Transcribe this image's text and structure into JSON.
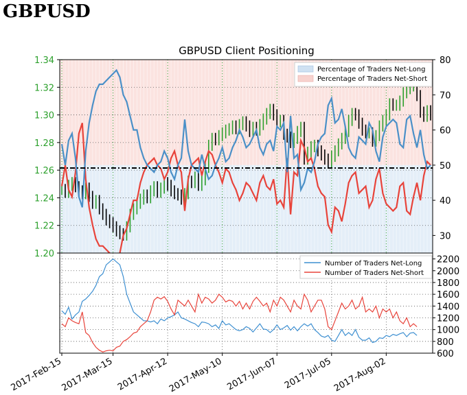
{
  "page": {
    "title": "GBPUSD"
  },
  "chart_data": [
    {
      "type": "line",
      "title": "GBPUSD Client Positioning",
      "ylim_left": [
        1.2,
        1.34
      ],
      "ylim_right": [
        25,
        80
      ],
      "left_ticks": [
        "1.20",
        "1.22",
        "1.24",
        "1.26",
        "1.28",
        "1.30",
        "1.32",
        "1.34"
      ],
      "right_ticks": [
        "30",
        "40",
        "50",
        "60",
        "70",
        "80"
      ],
      "colors": {
        "long": "#4a90c8",
        "short": "#e8433a",
        "price_up": "#2ca02c",
        "price_down": "#000000",
        "left_axis": "#2ca02c"
      },
      "legend": [
        "Percentage of Traders Net-Long",
        "Percentage of Traders Net-Short"
      ],
      "reference_line": 50,
      "price_series": [
        1.246,
        1.244,
        1.249,
        1.251,
        1.248,
        1.245,
        1.243,
        1.247,
        1.241,
        1.236,
        1.238,
        1.232,
        1.228,
        1.224,
        1.222,
        1.219,
        1.216,
        1.214,
        1.213,
        1.219,
        1.228,
        1.232,
        1.236,
        1.239,
        1.242,
        1.24,
        1.245,
        1.248,
        1.244,
        1.247,
        1.251,
        1.249,
        1.245,
        1.243,
        1.242,
        1.239,
        1.243,
        1.252,
        1.251,
        1.255,
        1.249,
        1.253,
        1.262,
        1.278,
        1.283,
        1.282,
        1.285,
        1.287,
        1.289,
        1.29,
        1.292,
        1.29,
        1.293,
        1.295,
        1.292,
        1.288,
        1.291,
        1.289,
        1.293,
        1.297,
        1.301,
        1.304,
        1.3,
        1.295,
        1.296,
        1.286,
        1.284,
        1.28,
        1.283,
        1.288,
        1.291,
        1.268,
        1.273,
        1.277,
        1.278,
        1.274,
        1.271,
        1.268,
        1.266,
        1.27,
        1.274,
        1.279,
        1.283,
        1.288,
        1.296,
        1.301,
        1.3,
        1.294,
        1.289,
        1.287,
        1.287,
        1.281,
        1.285,
        1.292,
        1.296,
        1.3,
        1.308,
        1.307,
        1.307,
        1.31,
        1.316,
        1.319,
        1.321,
        1.321,
        1.314,
        1.302,
        1.299,
        1.303,
        1.3
      ],
      "pct_long_series": [
        56,
        50,
        57,
        59,
        52,
        41,
        38,
        54,
        62,
        67,
        71,
        73,
        73,
        74,
        75,
        76,
        77,
        75,
        70,
        68,
        64,
        60,
        60,
        55,
        52,
        50,
        49,
        48,
        50,
        51,
        54,
        52,
        48,
        46,
        50,
        52,
        63,
        54,
        50,
        49,
        48,
        53,
        49,
        46,
        47,
        50,
        52,
        55,
        51,
        52,
        55,
        57,
        60,
        58,
        55,
        56,
        58,
        60,
        55,
        53,
        56,
        57,
        54,
        61,
        60,
        62,
        48,
        64,
        52,
        53,
        43,
        45,
        49,
        48,
        51,
        56,
        58,
        59,
        67,
        69,
        62,
        63,
        66,
        61,
        55,
        53,
        52,
        58,
        57,
        56,
        62,
        60,
        54,
        51,
        58,
        61,
        62,
        63,
        62,
        56,
        55,
        63,
        64,
        59,
        55,
        60,
        53,
        49,
        50
      ],
      "pct_short_series": [
        44,
        50,
        43,
        41,
        48,
        59,
        62,
        46,
        38,
        33,
        29,
        27,
        27,
        26,
        25,
        24,
        23,
        25,
        30,
        32,
        36,
        40,
        40,
        45,
        48,
        50,
        51,
        52,
        50,
        49,
        46,
        48,
        52,
        54,
        50,
        48,
        37,
        46,
        50,
        51,
        52,
        47,
        51,
        54,
        53,
        50,
        48,
        45,
        49,
        48,
        45,
        43,
        40,
        42,
        45,
        44,
        42,
        40,
        45,
        47,
        44,
        43,
        46,
        39,
        40,
        38,
        52,
        36,
        48,
        47,
        57,
        55,
        51,
        52,
        49,
        44,
        42,
        41,
        33,
        31,
        38,
        37,
        34,
        39,
        45,
        47,
        48,
        42,
        43,
        44,
        38,
        40,
        46,
        49,
        42,
        39,
        38,
        37,
        38,
        44,
        45,
        37,
        36,
        41,
        45,
        40,
        47,
        51,
        50
      ]
    },
    {
      "type": "line",
      "ylim": [
        600,
        2300
      ],
      "y_ticks": [
        "600",
        "800",
        "1000",
        "1200",
        "1400",
        "1600",
        "1800",
        "2000",
        "2200"
      ],
      "x_ticks": [
        "2017-Feb-15",
        "2017-Mar-15",
        "2017-Apr-12",
        "2017-May-10",
        "2017-Jun-07",
        "2017-Jul-05",
        "2017-Aug-02"
      ],
      "legend": [
        "Number of Traders Net-Long",
        "Number of Traders Net-Short"
      ],
      "series": [
        {
          "name": "Number of Traders Net-Long",
          "values": [
            1320,
            1260,
            1380,
            1180,
            1250,
            1300,
            1480,
            1520,
            1580,
            1650,
            1750,
            1900,
            1950,
            2100,
            2150,
            2200,
            2150,
            2100,
            1900,
            1600,
            1450,
            1300,
            1250,
            1200,
            1150,
            1150,
            1130,
            1150,
            1100,
            1180,
            1150,
            1200,
            1220,
            1250,
            1300,
            1200,
            1180,
            1150,
            1120,
            1100,
            1050,
            1130,
            1120,
            1100,
            1050,
            1080,
            1020,
            1150,
            1080,
            1100,
            1050,
            1000,
            980,
            1000,
            1050,
            1020,
            960,
            1030,
            1100,
            1010,
            1000,
            950,
            1000,
            1080,
            1000,
            1030,
            1070,
            990,
            1050,
            980,
            1050,
            1100,
            1060,
            1100,
            1000,
            950,
            890,
            870,
            900,
            820,
            800,
            900,
            1000,
            900,
            950,
            900,
            1000,
            870,
            820,
            820,
            860,
            780,
            800,
            860,
            850,
            900,
            880,
            920,
            900,
            930,
            950,
            880,
            940,
            950,
            900
          ],
          "color": "#3d8fd1"
        },
        {
          "name": "Number of Traders Net-Short",
          "values": [
            1100,
            1050,
            1200,
            1150,
            1120,
            1100,
            1300,
            950,
            900,
            780,
            700,
            650,
            620,
            640,
            650,
            640,
            700,
            720,
            800,
            830,
            880,
            940,
            960,
            1050,
            1100,
            1150,
            1300,
            1500,
            1550,
            1520,
            1560,
            1480,
            1350,
            1250,
            1500,
            1450,
            1400,
            1500,
            1400,
            1300,
            1600,
            1450,
            1550,
            1520,
            1450,
            1500,
            1600,
            1550,
            1470,
            1500,
            1480,
            1400,
            1480,
            1350,
            1450,
            1350,
            1480,
            1550,
            1480,
            1400,
            1450,
            1300,
            1500,
            1400,
            1550,
            1500,
            1400,
            1300,
            1500,
            1400,
            1350,
            1600,
            1500,
            1300,
            1400,
            1500,
            1500,
            1350,
            1050,
            1000,
            1150,
            1300,
            1450,
            1350,
            1400,
            1500,
            1350,
            1400,
            1550,
            1300,
            1350,
            1300,
            1400,
            1200,
            1350,
            1300,
            1350,
            1200,
            1300,
            1150,
            1100,
            1200,
            1050,
            1100,
            1050
          ],
          "color": "#e8433a"
        }
      ]
    }
  ]
}
